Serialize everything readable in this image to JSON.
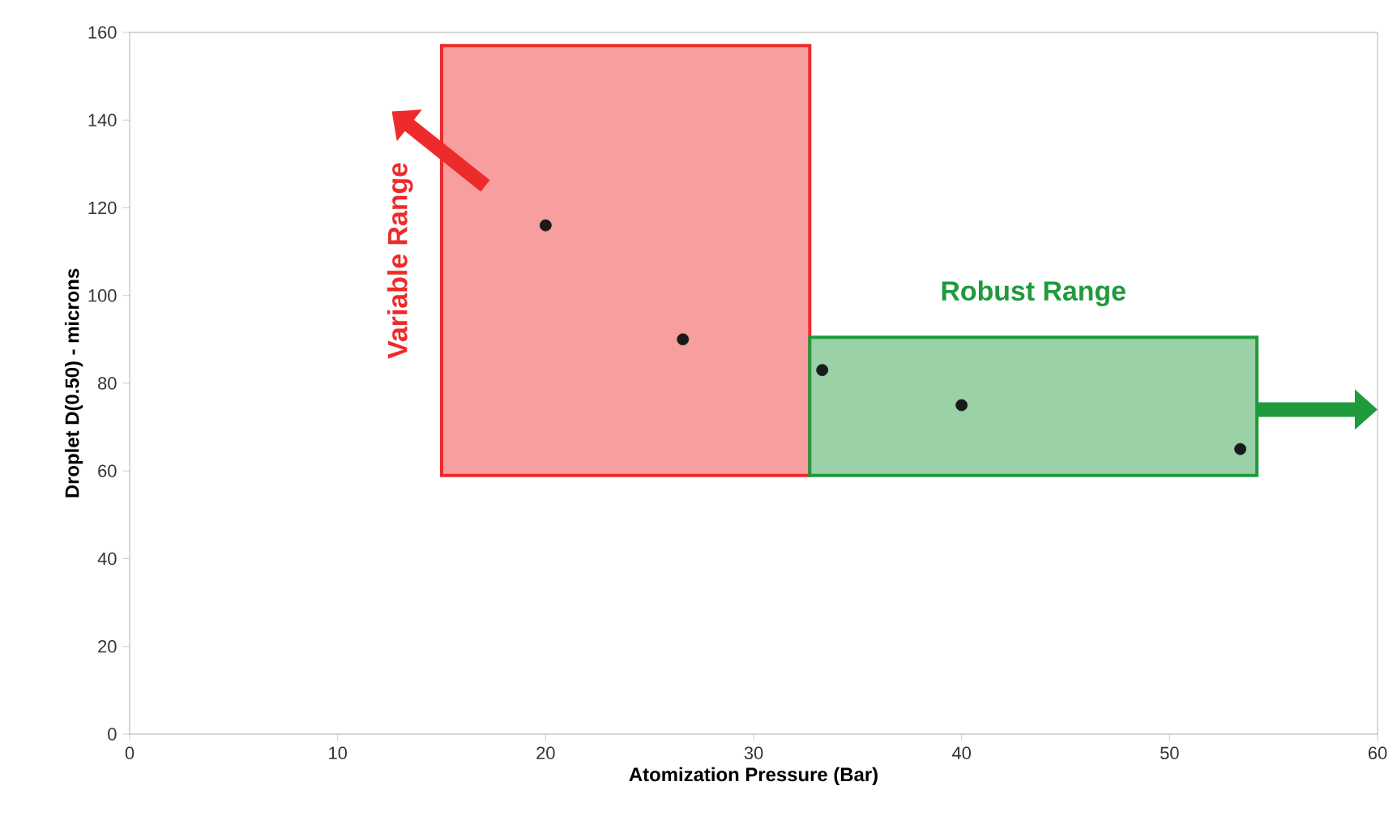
{
  "chart_data": {
    "type": "scatter",
    "xlabel": "Atomization Pressure (Bar)",
    "ylabel": "Droplet D(0.50)  - microns",
    "x": [
      20.0,
      26.6,
      33.3,
      40.0,
      53.4
    ],
    "series": [
      {
        "color": "#1a1a1a",
        "values": [
          116,
          90,
          83,
          75,
          65
        ]
      }
    ],
    "marker": "circle",
    "xlim": [
      0,
      60
    ],
    "xticks": [
      0,
      10,
      20,
      30,
      40,
      50,
      60
    ],
    "ylim": [
      0,
      160
    ],
    "yticks": [
      0,
      20,
      40,
      60,
      80,
      100,
      120,
      140,
      160
    ],
    "bands": [
      {
        "axis": "x",
        "from": 15.0,
        "to": 32.7,
        "label": "Variable Range",
        "color": "#ee2b2b"
      },
      {
        "axis": "x",
        "from": 32.7,
        "to": 54.2,
        "label": "Robust Range",
        "color": "#1f9a3c"
      }
    ]
  }
}
